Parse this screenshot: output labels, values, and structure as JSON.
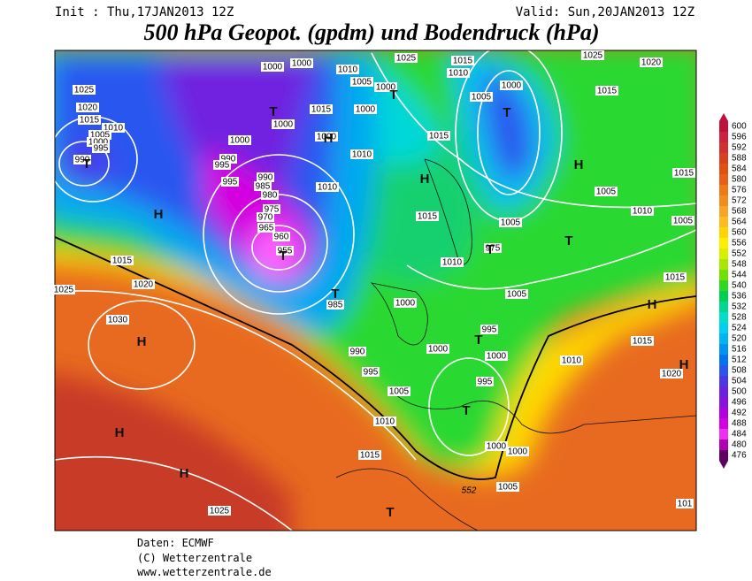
{
  "header": {
    "init": "Init : Thu,17JAN2013 12Z",
    "valid": "Valid: Sun,20JAN2013 12Z",
    "title": "500 hPa Geopot. (gpdm) und Bodendruck (hPa)"
  },
  "legend": {
    "values": [
      "600",
      "596",
      "592",
      "588",
      "584",
      "580",
      "576",
      "572",
      "568",
      "564",
      "560",
      "556",
      "552",
      "548",
      "544",
      "540",
      "536",
      "532",
      "528",
      "524",
      "520",
      "516",
      "512",
      "508",
      "504",
      "500",
      "496",
      "492",
      "488",
      "484",
      "480",
      "476"
    ],
    "colors": [
      "#c0103c",
      "#d02040",
      "#d03030",
      "#d84020",
      "#e05010",
      "#e86018",
      "#f07818",
      "#f08c20",
      "#f8a428",
      "#ffbc20",
      "#ffd400",
      "#ffee00",
      "#d8f000",
      "#a8e800",
      "#70e000",
      "#30d820",
      "#00d050",
      "#00d890",
      "#00e0c8",
      "#00d0f0",
      "#00b4f0",
      "#0094f0",
      "#0074f0",
      "#2a56f0",
      "#4a38e8",
      "#6a22e0",
      "#8a12e0",
      "#b000e0",
      "#d400e0",
      "#f030f0",
      "#b000b0",
      "#600060"
    ]
  },
  "isobar_labels": [
    "1000",
    "1000",
    "1010",
    "1025",
    "1015",
    "1010",
    "1025",
    "1020",
    "1005",
    "1000",
    "1000",
    "1015",
    "1025",
    "1020",
    "1015",
    "1010",
    "1005",
    "1000",
    "995",
    "990",
    "1015",
    "1000",
    "1000",
    "1000",
    "1005",
    "1000",
    "990",
    "995",
    "995",
    "990",
    "1010",
    "1015",
    "985",
    "980",
    "975",
    "970",
    "965",
    "960",
    "955",
    "1010",
    "1005",
    "1010",
    "1015",
    "1005",
    "1005",
    "1015",
    "975",
    "1010",
    "1015",
    "1015",
    "1020",
    "1025",
    "1005",
    "985",
    "1000",
    "1030",
    "995",
    "1015",
    "1000",
    "1000",
    "990",
    "1010",
    "995",
    "995",
    "1020",
    "1005",
    "1010",
    "1015",
    "1000",
    "1000",
    "1005",
    "1025",
    "101"
  ],
  "pressure_systems": [
    "H",
    "H",
    "H",
    "H",
    "H",
    "H",
    "H",
    "H",
    "H",
    "T",
    "T",
    "T",
    "T",
    "T",
    "T",
    "T",
    "T",
    "T",
    "T",
    "T"
  ],
  "contour_label": "552",
  "footer": {
    "source": "Daten: ECMWF",
    "copyright": "(C) Wetterzentrale",
    "url": "www.wetterzentrale.de"
  }
}
